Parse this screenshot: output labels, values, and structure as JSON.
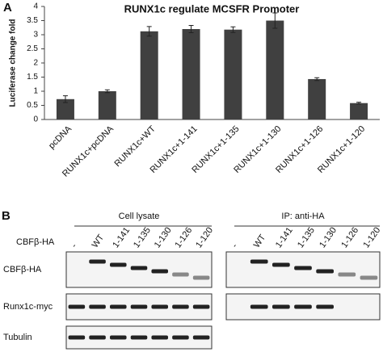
{
  "panel_labels": [
    "A",
    "B"
  ],
  "chart_data": {
    "type": "bar",
    "title": "RUNX1c regulate MCSFR Promoter",
    "y_label": "Luciferase change fold",
    "categories": [
      "pcDNA",
      "RUNX1c+pcDNA",
      "RUNX1c+WT",
      "RUNX1c+1-141",
      "RUNX1c+1-135",
      "RUNX1c+1-130",
      "RUNX1c+1-126",
      "RUNX1c+1-120"
    ],
    "values": [
      0.72,
      1.0,
      3.12,
      3.2,
      3.18,
      3.5,
      1.43,
      0.58
    ],
    "errors": [
      0.12,
      0.05,
      0.17,
      0.13,
      0.1,
      0.27,
      0.05,
      0.03
    ],
    "color": "#404040",
    "ylim": [
      0,
      4
    ],
    "yticks": [
      0,
      0.5,
      1,
      1.5,
      2,
      2.5,
      3,
      3.5,
      4
    ],
    "grid": false
  },
  "blot": {
    "lane_row_label": "CBFβ-HA",
    "groups": [
      {
        "title": "Cell lysate",
        "lanes": [
          "-",
          "WT",
          "1-141",
          "1-135",
          "1-130",
          "1-126",
          "1-120"
        ],
        "rows": [
          "CBFβ-HA",
          "Runx1c-myc",
          "Tubulin"
        ]
      },
      {
        "title": "IP: anti-HA",
        "lanes": [
          "-",
          "WT",
          "1-141",
          "1-135",
          "1-130",
          "1-126",
          "1-120"
        ],
        "rows": [
          "CBFβ-HA",
          "Runx1c-myc"
        ]
      }
    ]
  }
}
